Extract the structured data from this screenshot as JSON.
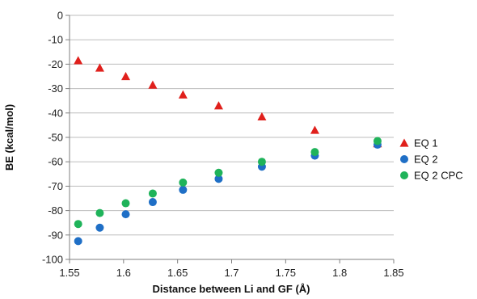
{
  "chart_data": {
    "type": "scatter",
    "title": "",
    "xlabel": "Distance between Li and GF (Å)",
    "ylabel": "BE (kcal/mol)",
    "xlim": [
      1.55,
      1.85
    ],
    "ylim": [
      -100,
      0
    ],
    "x_ticks": [
      "1.55",
      "1.6",
      "1.65",
      "1.7",
      "1.75",
      "1.8",
      "1.85"
    ],
    "y_ticks": [
      "0",
      "-10",
      "-20",
      "-30",
      "-40",
      "-50",
      "-60",
      "-70",
      "-80",
      "-90",
      "-100"
    ],
    "grid": "horizontal",
    "legend": "right",
    "series": [
      {
        "name": "EQ 1",
        "marker": "triangle",
        "color": "#e0201c",
        "points": [
          [
            1.558,
            -18.5
          ],
          [
            1.578,
            -21.5
          ],
          [
            1.602,
            -25.0
          ],
          [
            1.627,
            -28.5
          ],
          [
            1.655,
            -32.5
          ],
          [
            1.688,
            -37.0
          ],
          [
            1.728,
            -41.5
          ],
          [
            1.777,
            -47.0
          ],
          [
            1.835,
            -52.5
          ]
        ]
      },
      {
        "name": "EQ 2",
        "marker": "circle",
        "color": "#1f6fc6",
        "points": [
          [
            1.558,
            -92.5
          ],
          [
            1.578,
            -87.0
          ],
          [
            1.602,
            -81.5
          ],
          [
            1.627,
            -76.5
          ],
          [
            1.655,
            -71.5
          ],
          [
            1.688,
            -67.0
          ],
          [
            1.728,
            -62.0
          ],
          [
            1.777,
            -57.5
          ],
          [
            1.835,
            -53.0
          ]
        ]
      },
      {
        "name": "EQ 2 CPC",
        "marker": "circle",
        "color": "#1fb35a",
        "points": [
          [
            1.558,
            -85.5
          ],
          [
            1.578,
            -81.0
          ],
          [
            1.602,
            -77.0
          ],
          [
            1.627,
            -73.0
          ],
          [
            1.655,
            -68.5
          ],
          [
            1.688,
            -64.5
          ],
          [
            1.728,
            -60.0
          ],
          [
            1.777,
            -56.0
          ],
          [
            1.835,
            -51.5
          ]
        ]
      }
    ]
  }
}
